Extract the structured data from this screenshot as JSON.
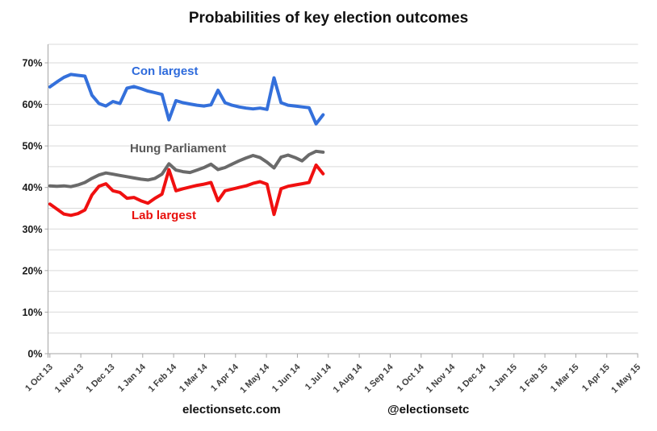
{
  "page": {
    "background": "#ffffff"
  },
  "chart_data": {
    "type": "line",
    "title": "Probabilities of key election outcomes",
    "x_tick_labels": [
      "1 Oct 13",
      "1 Nov 13",
      "1 Dec 13",
      "1 Jan 14",
      "1 Feb 14",
      "1 Mar 14",
      "1 Apr 14",
      "1 May 14",
      "1 Jun 14",
      "1 Jul 14",
      "1 Aug 14",
      "1 Sep 14",
      "1 Oct 14",
      "1 Nov 14",
      "1 Dec 14",
      "1 Jan 15",
      "1 Feb 15",
      "1 Mar 15",
      "1 Apr 15",
      "1 May 15"
    ],
    "y_tick_labels": [
      "0%",
      "10%",
      "20%",
      "30%",
      "40%",
      "50%",
      "60%",
      "70%"
    ],
    "ylim": [
      0,
      74.5
    ],
    "y_gridline_step_pct": 5,
    "grid": true,
    "legend_position": "inline-labels-near-lines",
    "sampling": "weekly points from 1 Oct 13 tick to approximately 1 Jul 14 tick",
    "series": [
      {
        "name": "Con largest",
        "color": "#3470DB",
        "values": [
          64.2,
          65.4,
          66.5,
          67.2,
          67.0,
          66.8,
          62.2,
          60.2,
          59.6,
          60.7,
          60.2,
          63.9,
          64.3,
          63.8,
          63.2,
          62.8,
          62.4,
          56.3,
          60.9,
          60.4,
          60.1,
          59.8,
          59.6,
          59.9,
          63.4,
          60.4,
          59.8,
          59.4,
          59.1,
          58.9,
          59.1,
          58.8,
          66.4,
          60.4,
          59.8,
          59.6,
          59.4,
          59.2,
          55.3,
          57.5
        ]
      },
      {
        "name": "Hung Parliament",
        "color": "#6A6A6A",
        "values": [
          40.4,
          40.3,
          40.4,
          40.2,
          40.6,
          41.2,
          42.2,
          43.0,
          43.5,
          43.2,
          42.9,
          42.6,
          42.3,
          42.0,
          41.8,
          42.2,
          43.2,
          45.7,
          44.2,
          43.8,
          43.6,
          44.2,
          44.8,
          45.6,
          44.3,
          44.8,
          45.6,
          46.4,
          47.1,
          47.7,
          47.2,
          46.1,
          44.7,
          47.3,
          47.8,
          47.2,
          46.4,
          47.9,
          48.7,
          48.5
        ]
      },
      {
        "name": "Lab largest",
        "color": "#F01010",
        "values": [
          36.0,
          34.8,
          33.6,
          33.3,
          33.7,
          34.6,
          38.2,
          40.3,
          40.9,
          39.2,
          38.8,
          37.4,
          37.6,
          36.8,
          36.2,
          37.4,
          38.4,
          44.3,
          39.2,
          39.7,
          40.1,
          40.5,
          40.8,
          41.2,
          36.8,
          39.2,
          39.6,
          40.0,
          40.4,
          41.0,
          41.4,
          40.8,
          33.5,
          39.7,
          40.3,
          40.6,
          40.9,
          41.2,
          45.4,
          43.3
        ]
      }
    ],
    "annotations": [
      {
        "text": "Con largest",
        "color": "#2E6BDC"
      },
      {
        "text": "Hung Parliament",
        "color": "#595959"
      },
      {
        "text": "Lab largest",
        "color": "#E8100C"
      }
    ]
  },
  "footer": {
    "left": "electionsetc.com",
    "right": "@electionsetc"
  },
  "colors": {
    "gridline": "#D9D9D9",
    "axis": "#A6A6A6",
    "x_tick_label": "#3F3F3F",
    "y_tick_label": "#1A1A1A",
    "title": "#111111"
  }
}
